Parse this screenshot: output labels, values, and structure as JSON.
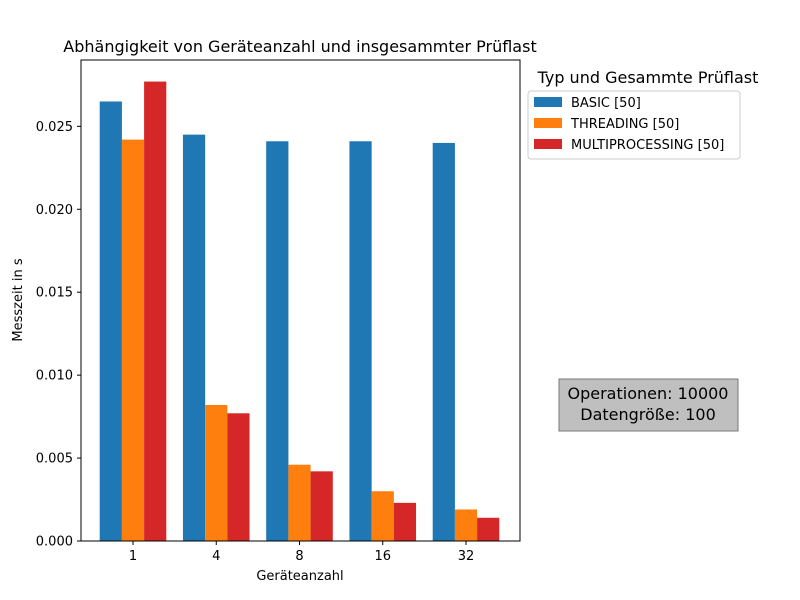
{
  "chart_data": {
    "type": "bar",
    "title": "Abhängigkeit von Geräteanzahl und insgesammter Prüflast",
    "xlabel": "Geräteanzahl",
    "ylabel": "Messzeit in s",
    "categories": [
      "1",
      "4",
      "8",
      "16",
      "32"
    ],
    "ylim": [
      0,
      0.029
    ],
    "yticks": [
      0.0,
      0.005,
      0.01,
      0.015,
      0.02,
      0.025
    ],
    "ytick_labels": [
      "0.000",
      "0.005",
      "0.010",
      "0.015",
      "0.020",
      "0.025"
    ],
    "grid": false,
    "legend": {
      "title": "Typ und Gesammte Prüflast",
      "placement": "outside-top-right"
    },
    "series": [
      {
        "name": "BASIC [50]",
        "color": "#1f77b4",
        "values": [
          0.0265,
          0.0245,
          0.0241,
          0.0241,
          0.024
        ]
      },
      {
        "name": "THREADING [50]",
        "color": "#ff7f0e",
        "values": [
          0.0242,
          0.0082,
          0.0046,
          0.003,
          0.0019
        ]
      },
      {
        "name": "MULTIPROCESSING [50]",
        "color": "#d62728",
        "values": [
          0.0277,
          0.0077,
          0.0042,
          0.0023,
          0.0014
        ]
      }
    ],
    "annotation": {
      "lines": [
        "Operationen: 10000",
        "Datengröße: 100"
      ]
    }
  }
}
